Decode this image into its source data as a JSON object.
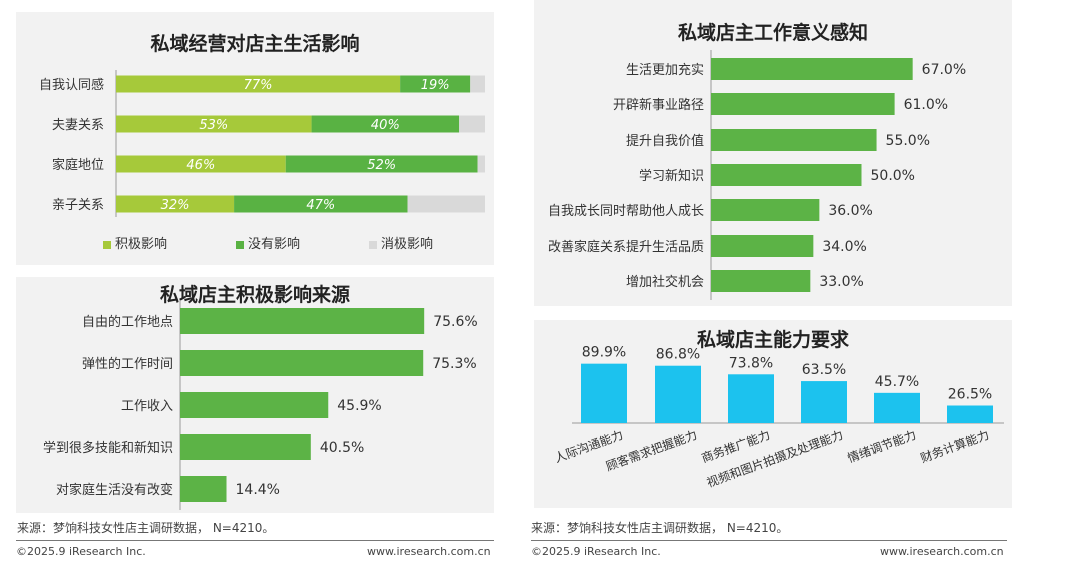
{
  "colors": {
    "positive": "#a6c93a",
    "neutral": "#59b243",
    "negative": "#d9d9d9",
    "bar_green": "#5cb346",
    "bar_cyan": "#1cc2ee",
    "footer_line": "#777777"
  },
  "chart_data": [
    {
      "type": "bar",
      "orientation": "horizontal-stacked",
      "title": "私域经营对店主生活影响",
      "categories": [
        "自我认同感",
        "夫妻关系",
        "家庭地位",
        "亲子关系"
      ],
      "series": [
        {
          "name": "积极影响",
          "values": [
            77,
            53,
            46,
            32
          ],
          "labels": [
            "77%",
            "53%",
            "46%",
            "32%"
          ]
        },
        {
          "name": "没有影响",
          "values": [
            19,
            40,
            52,
            47
          ],
          "labels": [
            "19%",
            "40%",
            "52%",
            "47%"
          ]
        },
        {
          "name": "消极影响",
          "values": [
            4,
            7,
            2,
            21
          ]
        }
      ],
      "xlim": [
        0,
        100
      ],
      "legend": "bottom"
    },
    {
      "type": "bar",
      "orientation": "horizontal",
      "title": "私域店主积极影响来源",
      "categories": [
        "自由的工作地点",
        "弹性的工作时间",
        "工作收入",
        "学到很多技能和新知识",
        "对家庭生活没有改变"
      ],
      "values": [
        75.6,
        75.3,
        45.9,
        40.5,
        14.4
      ],
      "labels": [
        "75.6%",
        "75.3%",
        "45.9%",
        "40.5%",
        "14.4%"
      ],
      "xlim": [
        0,
        100
      ]
    },
    {
      "type": "bar",
      "orientation": "horizontal",
      "title": "私域店主工作意义感知",
      "categories": [
        "生活更加充实",
        "开辟新事业路径",
        "提升自我价值",
        "学习新知识",
        "自我成长同时帮助他人成长",
        "改善家庭关系提升生活品质",
        "增加社交机会"
      ],
      "values": [
        67.0,
        61.0,
        55.0,
        50.0,
        36.0,
        34.0,
        33.0
      ],
      "labels": [
        "67.0%",
        "61.0%",
        "55.0%",
        "50.0%",
        "36.0%",
        "34.0%",
        "33.0%"
      ],
      "xlim": [
        0,
        100
      ]
    },
    {
      "type": "bar",
      "orientation": "vertical",
      "title": "私域店主能力要求",
      "categories": [
        "人际沟通能力",
        "顾客需求把握能力",
        "商务推广能力",
        "视频和图片拍摄及处理能力",
        "情绪调节能力",
        "财务计算能力"
      ],
      "values": [
        89.9,
        86.8,
        73.8,
        63.5,
        45.7,
        26.5
      ],
      "labels": [
        "89.9%",
        "86.8%",
        "73.8%",
        "63.5%",
        "45.7%",
        "26.5%"
      ],
      "ylim": [
        0,
        100
      ]
    }
  ],
  "footer": {
    "source_left": "来源：梦饷科技女性店主调研数据， N=4210。",
    "source_right": "来源：梦饷科技女性店主调研数据， N=4210。",
    "copyright_left": "©2025.9 iResearch Inc.",
    "copyright_right": "©2025.9 iResearch Inc.",
    "url_left": "www.iresearch.com.cn",
    "url_right": "www.iresearch.com.cn"
  }
}
